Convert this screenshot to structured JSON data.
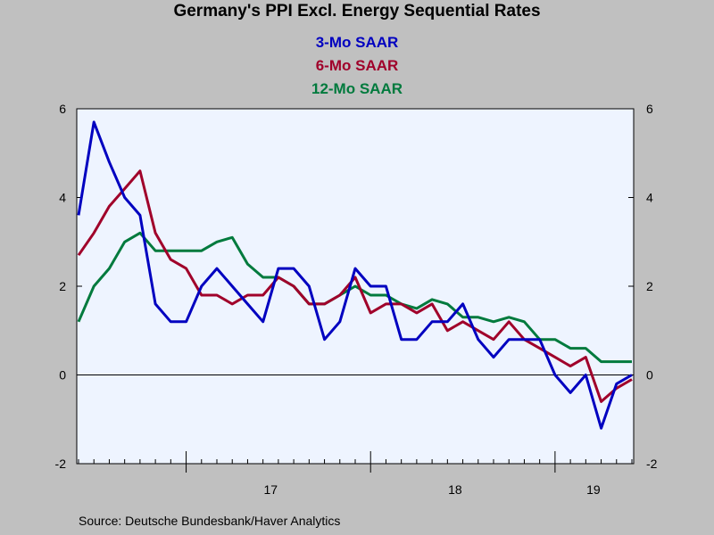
{
  "chart_data": {
    "type": "line",
    "title": "Germany's PPI Excl. Energy Sequential Rates",
    "source": "Source:  Deutsche Bundesbank/Haver Analytics",
    "ylim": [
      -2,
      6
    ],
    "y_ticks": [
      -2,
      0,
      2,
      4,
      6
    ],
    "x_start": "2016-06",
    "x_end": "2019-06",
    "x_ticks": [
      {
        "label": "17",
        "month": "2017-01"
      },
      {
        "label": "18",
        "month": "2018-01"
      },
      {
        "label": "19",
        "month": "2019-01"
      }
    ],
    "legend_placement": "top-center",
    "grid": false,
    "zero_line": true,
    "months": [
      "2016-06",
      "2016-07",
      "2016-08",
      "2016-09",
      "2016-10",
      "2016-11",
      "2016-12",
      "2017-01",
      "2017-02",
      "2017-03",
      "2017-04",
      "2017-05",
      "2017-06",
      "2017-07",
      "2017-08",
      "2017-09",
      "2017-10",
      "2017-11",
      "2017-12",
      "2018-01",
      "2018-02",
      "2018-03",
      "2018-04",
      "2018-05",
      "2018-06",
      "2018-07",
      "2018-08",
      "2018-09",
      "2018-10",
      "2018-11",
      "2018-12",
      "2019-01",
      "2019-02",
      "2019-03",
      "2019-04",
      "2019-05",
      "2019-06"
    ],
    "series": [
      {
        "name": "3-Mo SAAR",
        "color": "#0000c0",
        "values": [
          3.6,
          5.7,
          4.8,
          4.0,
          3.6,
          1.6,
          1.2,
          1.2,
          2.0,
          2.4,
          2.0,
          1.6,
          1.2,
          2.4,
          2.4,
          2.0,
          0.8,
          1.2,
          2.4,
          2.0,
          2.0,
          0.8,
          0.8,
          1.2,
          1.2,
          1.6,
          0.8,
          0.4,
          0.8,
          0.8,
          0.8,
          0.0,
          -0.4,
          0.0,
          -1.2,
          -0.2,
          0.0
        ]
      },
      {
        "name": "6-Mo SAAR",
        "color": "#a0002a",
        "values": [
          2.7,
          3.2,
          3.8,
          4.2,
          4.6,
          3.2,
          2.6,
          2.4,
          1.8,
          1.8,
          1.6,
          1.8,
          1.8,
          2.2,
          2.0,
          1.6,
          1.6,
          1.8,
          2.2,
          1.4,
          1.6,
          1.6,
          1.4,
          1.6,
          1.0,
          1.2,
          1.0,
          0.8,
          1.2,
          0.8,
          0.6,
          0.4,
          0.2,
          0.4,
          -0.6,
          -0.3,
          -0.1
        ]
      },
      {
        "name": "12-Mo SAAR",
        "color": "#007a3d",
        "values": [
          1.2,
          2.0,
          2.4,
          3.0,
          3.2,
          2.8,
          2.8,
          2.8,
          2.8,
          3.0,
          3.1,
          2.5,
          2.2,
          2.2,
          2.0,
          1.6,
          1.6,
          1.8,
          2.0,
          1.8,
          1.8,
          1.6,
          1.5,
          1.7,
          1.6,
          1.3,
          1.3,
          1.2,
          1.3,
          1.2,
          0.8,
          0.8,
          0.6,
          0.6,
          0.3,
          0.3,
          0.3
        ]
      }
    ]
  }
}
